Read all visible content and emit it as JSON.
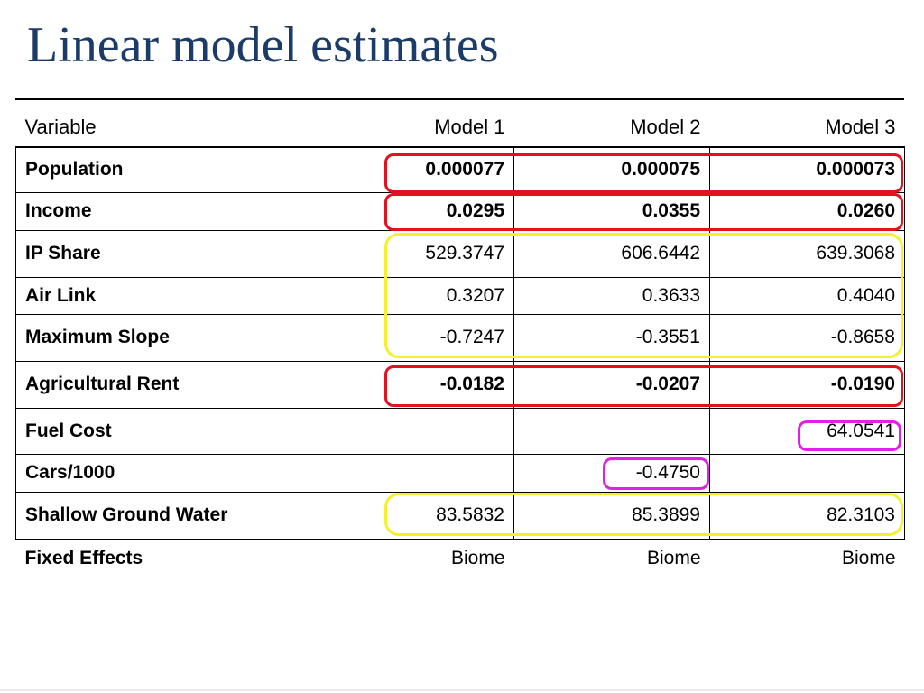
{
  "slide": {
    "title": "Linear model estimates"
  },
  "table": {
    "headers": [
      "Variable",
      "Model 1",
      "Model 2",
      "Model 3"
    ],
    "rows": [
      {
        "variable": "Population",
        "values": [
          "0.000077",
          "0.000075",
          "0.000073"
        ]
      },
      {
        "variable": "Income",
        "values": [
          "0.0295",
          "0.0355",
          "0.0260"
        ]
      },
      {
        "variable": "IP Share",
        "values": [
          "529.3747",
          "606.6442",
          "639.3068"
        ]
      },
      {
        "variable": "Air Link",
        "values": [
          "0.3207",
          "0.3633",
          "0.4040"
        ]
      },
      {
        "variable": "Maximum Slope",
        "values": [
          "-0.7247",
          "-0.3551",
          "-0.8658"
        ]
      },
      {
        "variable": "Agricultural Rent",
        "values": [
          "-0.0182",
          "-0.0207",
          "-0.0190"
        ]
      },
      {
        "variable": "Fuel Cost",
        "values": [
          "",
          "",
          "64.0541"
        ]
      },
      {
        "variable": "Cars/1000",
        "values": [
          "",
          "-0.4750",
          ""
        ]
      },
      {
        "variable": "Shallow Ground Water",
        "values": [
          "83.5832",
          "85.3899",
          "82.3103"
        ]
      }
    ],
    "footer": {
      "label": "Fixed Effects",
      "values": [
        "Biome",
        "Biome",
        "Biome"
      ]
    }
  },
  "highlight_colors": {
    "red": "#e3101d",
    "yellow": "#f5f02e",
    "magenta": "#e21ee8"
  }
}
